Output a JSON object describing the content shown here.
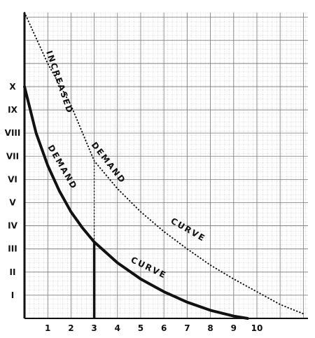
{
  "chart_data": {
    "type": "line",
    "title": "",
    "xlabel": "",
    "ylabel": "",
    "grid": true,
    "x_ticks": [
      "1",
      "2",
      "3",
      "4",
      "5",
      "6",
      "7",
      "8",
      "9",
      "10"
    ],
    "y_ticks": [
      "I",
      "II",
      "III",
      "IV",
      "V",
      "VI",
      "VII",
      "VIII",
      "IX",
      "X"
    ],
    "xlim": [
      0,
      12.2
    ],
    "ylim": [
      0,
      13.2
    ],
    "series": [
      {
        "name": "DEMAND CURVE",
        "style": "solid",
        "x": [
          0,
          0.5,
          1,
          1.5,
          2,
          2.5,
          3,
          4,
          5,
          6,
          7,
          8,
          9,
          9.6
        ],
        "y": [
          10,
          8.0,
          6.6,
          5.5,
          4.6,
          3.9,
          3.3,
          2.4,
          1.7,
          1.15,
          0.7,
          0.35,
          0.1,
          0
        ]
      },
      {
        "name": "INCREASED DEMAND CURVE",
        "style": "dotted",
        "x": [
          0,
          1,
          2,
          3,
          4,
          5,
          6,
          7,
          8,
          9,
          10,
          11,
          12
        ],
        "y": [
          13.2,
          11.0,
          9.2,
          6.8,
          5.6,
          4.6,
          3.75,
          3.0,
          2.3,
          1.7,
          1.15,
          0.6,
          0.2
        ]
      }
    ],
    "reference_line": {
      "x": 3,
      "y_solid_top": 3.3,
      "y_dotted_top": 6.8
    },
    "annotations": {
      "increased": "INCREASED",
      "demand_upper": "DEMAND",
      "curve_upper": "CURVE",
      "demand_lower": "DEMAND",
      "curve_lower": "CURVE"
    }
  }
}
